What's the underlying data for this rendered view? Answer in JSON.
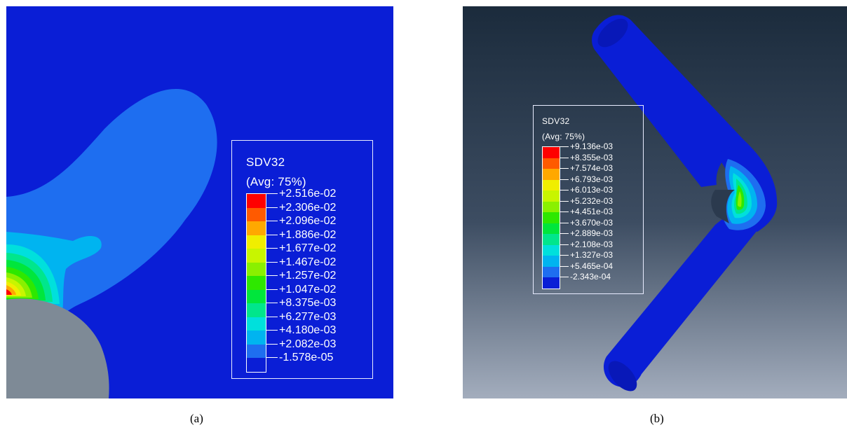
{
  "panel_a": {
    "caption": "(a)",
    "background_color": "#0a1ed6",
    "legend": {
      "title": "SDV32",
      "subtitle": "(Avg: 75%)",
      "values": [
        "+2.516e-02",
        "+2.306e-02",
        "+2.096e-02",
        "+1.886e-02",
        "+1.677e-02",
        "+1.467e-02",
        "+1.257e-02",
        "+1.047e-02",
        "+8.375e-03",
        "+6.277e-03",
        "+4.180e-03",
        "+2.082e-03",
        "-1.578e-05"
      ],
      "colors": [
        "#ff0000",
        "#ff5a00",
        "#ffa800",
        "#f0ee00",
        "#c8f500",
        "#8af000",
        "#2ee800",
        "#00e63c",
        "#00e68c",
        "#00e0dc",
        "#00b4f0",
        "#1e6ef0",
        "#0a1ed6"
      ]
    }
  },
  "panel_b": {
    "caption": "(b)",
    "background_gradient": [
      "#1b2b3c",
      "#a3adbd"
    ],
    "legend": {
      "title": "SDV32",
      "subtitle": "(Avg: 75%)",
      "values": [
        "+9.136e-03",
        "+8.355e-03",
        "+7.574e-03",
        "+6.793e-03",
        "+6.013e-03",
        "+5.232e-03",
        "+4.451e-03",
        "+3.670e-03",
        "+2.889e-03",
        "+2.108e-03",
        "+1.327e-03",
        "+5.465e-04",
        "-2.343e-04"
      ],
      "colors": [
        "#ff0000",
        "#ff5a00",
        "#ffa800",
        "#f0ee00",
        "#c8f500",
        "#8af000",
        "#2ee800",
        "#00e63c",
        "#00e68c",
        "#00e0dc",
        "#00b4f0",
        "#1e6ef0",
        "#0a1ed6"
      ]
    }
  }
}
